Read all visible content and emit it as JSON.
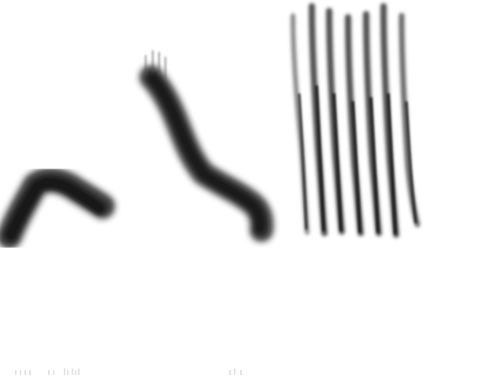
{
  "image": {
    "background": "#ffffff",
    "ink": "#1a1a1a",
    "subjects": [
      "chevron-stroke",
      "diagonal-stroke",
      "hatch-strokes"
    ]
  }
}
